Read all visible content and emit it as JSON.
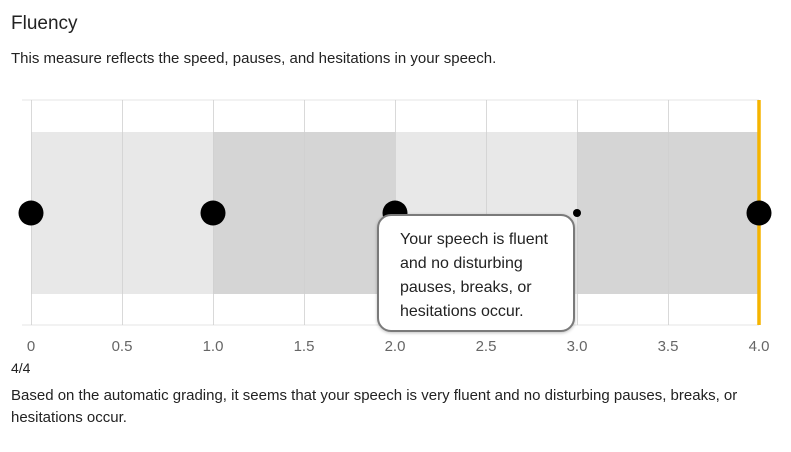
{
  "header": {
    "title": "Fluency",
    "description": "This measure reflects the speed, pauses, and hesitations in your speech."
  },
  "chart_data": {
    "type": "scatter",
    "title": "",
    "xlabel": "",
    "ylabel": "",
    "xlim": [
      0,
      4
    ],
    "ticks": [
      "0",
      "0.5",
      "1.0",
      "1.5",
      "2.0",
      "2.5",
      "3.0",
      "3.5",
      "4.0"
    ],
    "tick_values": [
      0,
      0.5,
      1,
      1.5,
      2,
      2.5,
      3,
      3.5,
      4
    ],
    "bands": [
      {
        "from": 0,
        "to": 1,
        "color": "#e8e8e8"
      },
      {
        "from": 1,
        "to": 2,
        "color": "#d5d5d5"
      },
      {
        "from": 2,
        "to": 3,
        "color": "#e8e8e8"
      },
      {
        "from": 3,
        "to": 4,
        "color": "#d5d5d5"
      }
    ],
    "points": [
      {
        "x": 0,
        "size": "large"
      },
      {
        "x": 1,
        "size": "large"
      },
      {
        "x": 2,
        "size": "large"
      },
      {
        "x": 3,
        "size": "small"
      },
      {
        "x": 4,
        "size": "large"
      }
    ],
    "marker": {
      "x": 4,
      "color": "#f5b400"
    },
    "grid": true
  },
  "tooltip": {
    "text": "Your speech is fluent and no disturbing pauses, breaks, or hesitations occur."
  },
  "result": {
    "score": "4/4",
    "summary": "Based on the automatic grading, it seems that your speech is very fluent and no disturbing pauses, breaks, or hesitations occur."
  }
}
